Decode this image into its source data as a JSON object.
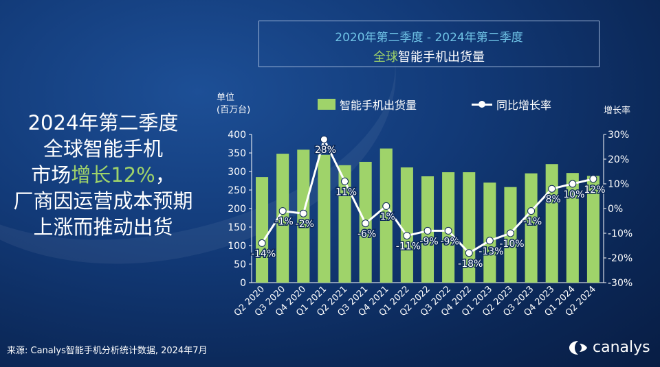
{
  "title": {
    "line1": "2020年第二季度 - 2024年第二季度",
    "line2_accent": "全球",
    "line2_rest": "智能手机出货量"
  },
  "headline": {
    "line1": "2024年第二季度",
    "line2": "全球智能手机",
    "line3_prefix": "市场",
    "line3_highlight": "增长12%",
    "line3_suffix": "，",
    "line4": "厂商因运营成本预期",
    "line5": "上涨而推动出货"
  },
  "source": "来源: Canalys智能手机分析统计数据, 2024年7月",
  "brand": "canalys",
  "colors": {
    "bar": "#9fd36a",
    "line": "#ffffff",
    "title_top": "#6fc3e6",
    "accent": "#9fd36a"
  },
  "chart_data": {
    "type": "bar",
    "categories": [
      "Q2 2020",
      "Q3 2020",
      "Q4 2020",
      "Q1 2021",
      "Q2 2021",
      "Q3 2021",
      "Q4 2021",
      "Q1 2022",
      "Q2 2022",
      "Q3 2022",
      "Q4 2022",
      "Q1 2023",
      "Q2 2023",
      "Q3 2023",
      "Q4 2023",
      "Q1 2024",
      "Q2 2024"
    ],
    "series": [
      {
        "name": "智能手机出货量",
        "type": "bar",
        "axis": "left",
        "values": [
          285,
          348,
          359,
          345,
          317,
          326,
          362,
          311,
          287,
          298,
          298,
          270,
          258,
          295,
          320,
          296,
          288
        ]
      },
      {
        "name": "同比增长率",
        "type": "line",
        "axis": "right",
        "values": [
          -14,
          -1,
          -2,
          28,
          11,
          -6,
          1,
          -11,
          -9,
          -9,
          -18,
          -13,
          -10,
          -1,
          8,
          10,
          12
        ],
        "labels": [
          "-14%",
          "-1%",
          "-2%",
          "28%",
          "11%",
          "-6%",
          "1%",
          "-11%",
          "-9%",
          "-9%",
          "-18%",
          "-13%",
          "-10%",
          "-1%",
          "8%",
          "10%",
          "12%"
        ]
      }
    ],
    "y_left": {
      "label_line1": "单位",
      "label_line2": "(百万台)",
      "range": [
        0,
        400
      ],
      "ticks": [
        "0",
        "50",
        "100",
        "150",
        "200",
        "250",
        "300",
        "350",
        "400"
      ]
    },
    "y_right": {
      "label": "增长率",
      "range": [
        -30,
        30
      ],
      "ticks": [
        "30%",
        "20%",
        "10%",
        "0%",
        "-10%",
        "-20%",
        "-30%"
      ]
    },
    "legend_position": "top"
  }
}
